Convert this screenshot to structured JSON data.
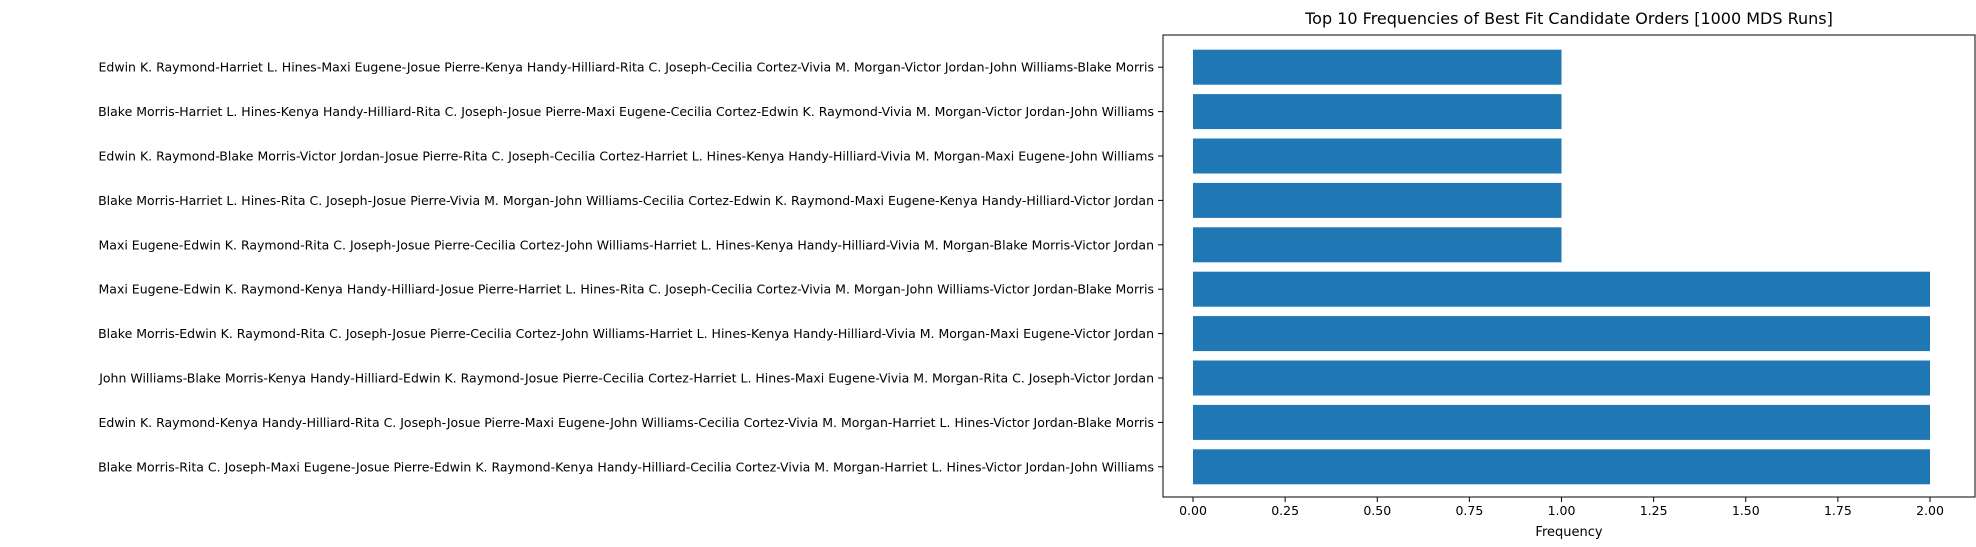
{
  "chart_data": {
    "type": "bar",
    "orientation": "horizontal",
    "title": "Top 10 Frequencies of Best Fit Candidate Orders [1000 MDS Runs]",
    "xlabel": "Frequency",
    "ylabel": "",
    "xlim": [
      0,
      2.1
    ],
    "xticks": [
      0.0,
      0.25,
      0.5,
      0.75,
      1.0,
      1.25,
      1.5,
      1.75,
      2.0
    ],
    "xtick_labels": [
      "0.00",
      "0.25",
      "0.50",
      "0.75",
      "1.00",
      "1.25",
      "1.50",
      "1.75",
      "2.00"
    ],
    "grid": false,
    "bar_color": "#1f77b4",
    "categories": [
      "Edwin K. Raymond-Harriet L. Hines-Maxi Eugene-Josue Pierre-Kenya Handy-Hilliard-Rita C. Joseph-Cecilia Cortez-Vivia M. Morgan-Victor Jordan-John Williams-Blake Morris",
      "Blake Morris-Harriet L. Hines-Kenya Handy-Hilliard-Rita C. Joseph-Josue Pierre-Maxi Eugene-Cecilia Cortez-Edwin K. Raymond-Vivia M. Morgan-Victor Jordan-John Williams",
      "Edwin K. Raymond-Blake Morris-Victor Jordan-Josue Pierre-Rita C. Joseph-Cecilia Cortez-Harriet L. Hines-Kenya Handy-Hilliard-Vivia M. Morgan-Maxi Eugene-John Williams",
      "Blake Morris-Harriet L. Hines-Rita C. Joseph-Josue Pierre-Vivia M. Morgan-John Williams-Cecilia Cortez-Edwin K. Raymond-Maxi Eugene-Kenya Handy-Hilliard-Victor Jordan",
      "Maxi Eugene-Edwin K. Raymond-Rita C. Joseph-Josue Pierre-Cecilia Cortez-John Williams-Harriet L. Hines-Kenya Handy-Hilliard-Vivia M. Morgan-Blake Morris-Victor Jordan",
      "Maxi Eugene-Edwin K. Raymond-Kenya Handy-Hilliard-Josue Pierre-Harriet L. Hines-Rita C. Joseph-Cecilia Cortez-Vivia M. Morgan-John Williams-Victor Jordan-Blake Morris",
      "Blake Morris-Edwin K. Raymond-Rita C. Joseph-Josue Pierre-Cecilia Cortez-John Williams-Harriet L. Hines-Kenya Handy-Hilliard-Vivia M. Morgan-Maxi Eugene-Victor Jordan",
      "John Williams-Blake Morris-Kenya Handy-Hilliard-Edwin K. Raymond-Josue Pierre-Cecilia Cortez-Harriet L. Hines-Maxi Eugene-Vivia M. Morgan-Rita C. Joseph-Victor Jordan",
      "Edwin K. Raymond-Kenya Handy-Hilliard-Rita C. Joseph-Josue Pierre-Maxi Eugene-John Williams-Cecilia Cortez-Vivia M. Morgan-Harriet L. Hines-Victor Jordan-Blake Morris",
      "Blake Morris-Rita C. Joseph-Maxi Eugene-Josue Pierre-Edwin K. Raymond-Kenya Handy-Hilliard-Cecilia Cortez-Vivia M. Morgan-Harriet L. Hines-Victor Jordan-John Williams"
    ],
    "values": [
      1,
      1,
      1,
      1,
      1,
      2,
      2,
      2,
      2,
      2
    ]
  }
}
